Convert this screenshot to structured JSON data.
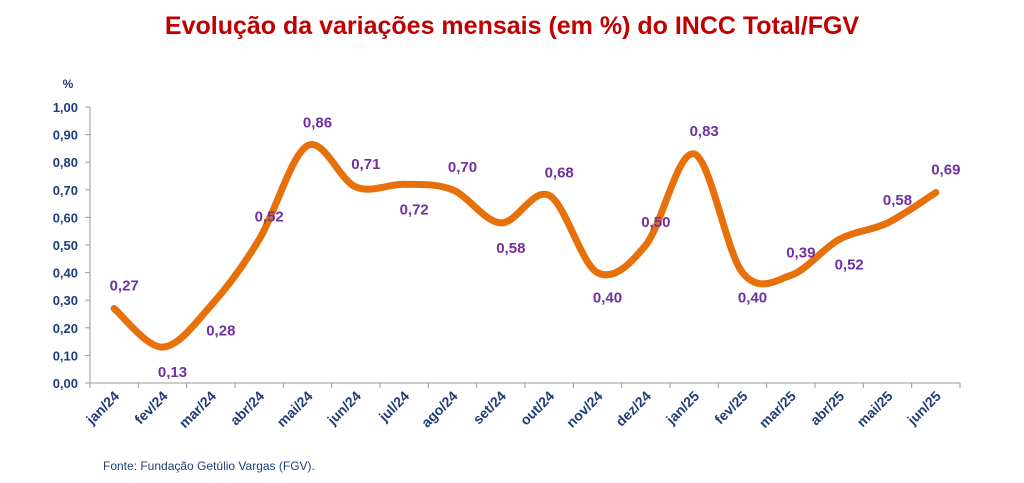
{
  "chart_data": {
    "type": "line",
    "title": "Evolução da variações mensais (em %) do INCC Total/FGV",
    "ylabel": "%",
    "xlabel": "",
    "ylim": [
      0,
      1.0
    ],
    "yticks": [
      "0,00",
      "0,10",
      "0,20",
      "0,30",
      "0,40",
      "0,50",
      "0,60",
      "0,70",
      "0,80",
      "0,90",
      "1,00"
    ],
    "categories": [
      "jan/24",
      "fev/24",
      "mar/24",
      "abr/24",
      "mai/24",
      "jun/24",
      "jul/24",
      "ago/24",
      "set/24",
      "out/24",
      "nov/24",
      "dez/24",
      "jan/25",
      "fev/25",
      "mar/25",
      "abr/25",
      "mai/25",
      "jun/25"
    ],
    "values": [
      0.27,
      0.13,
      0.28,
      0.52,
      0.86,
      0.71,
      0.72,
      0.7,
      0.58,
      0.68,
      0.4,
      0.5,
      0.83,
      0.4,
      0.39,
      0.52,
      0.58,
      0.69
    ],
    "data_labels": [
      "0,27",
      "0,13",
      "0,28",
      "0,52",
      "0,86",
      "0,71",
      "0,72",
      "0,70",
      "0,58",
      "0,68",
      "0,40",
      "0,50",
      "0,83",
      "0,40",
      "0,39",
      "0,52",
      "0,58",
      "0,69"
    ],
    "grid": false,
    "colors": {
      "line": "#e8700a",
      "labels": "#7030a0",
      "axis_text": "#1f3d7a",
      "title": "#c00000"
    },
    "source": "Fonte: Fundação Getúlio Vargas (FGV)."
  }
}
